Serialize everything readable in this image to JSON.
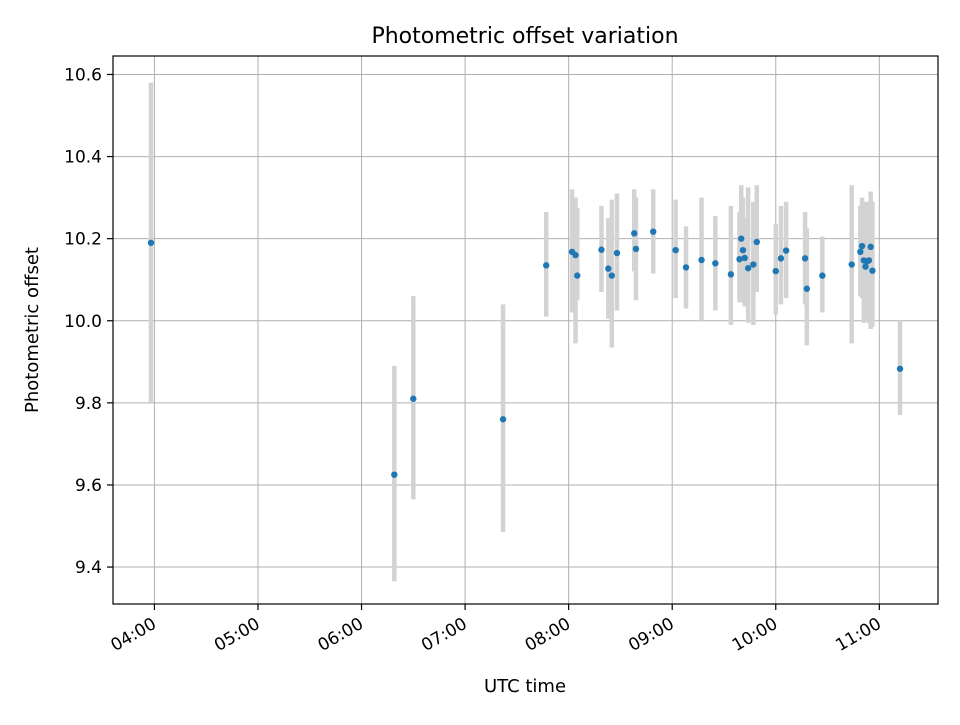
{
  "colors": {
    "point": "#1f77b4",
    "errorbar": "#d3d3d3",
    "grid": "#b0b0b0",
    "frame": "#000000",
    "background": "#ffffff"
  },
  "chart_data": {
    "type": "scatter",
    "title": "Photometric offset variation",
    "xlabel": "UTC time",
    "ylabel": "Photometric offset",
    "x_format": "HH:MM",
    "xlim": [
      "03:36",
      "11:34"
    ],
    "ylim": [
      9.31,
      10.645
    ],
    "x_ticks": [
      "04:00",
      "05:00",
      "06:00",
      "07:00",
      "08:00",
      "09:00",
      "10:00",
      "11:00"
    ],
    "y_ticks": [
      "9.4",
      "9.6",
      "9.8",
      "10.0",
      "10.2",
      "10.4",
      "10.6"
    ],
    "grid": true,
    "legend": "none",
    "series": [
      {
        "x": [
          "03:58",
          "06:19",
          "06:30",
          "07:22",
          "07:47",
          "08:02",
          "08:04",
          "08:05",
          "08:19",
          "08:23",
          "08:25",
          "08:28",
          "08:38",
          "08:39",
          "08:49",
          "09:02",
          "09:08",
          "09:17",
          "09:25",
          "09:34",
          "09:39",
          "09:40",
          "09:41",
          "09:42",
          "09:44",
          "09:47",
          "09:49",
          "10:00",
          "10:03",
          "10:06",
          "10:17",
          "10:18",
          "10:27",
          "10:44",
          "10:49",
          "10:50",
          "10:51",
          "10:52",
          "10:53",
          "10:54",
          "10:55",
          "10:56",
          "11:12"
        ],
        "y": [
          10.19,
          9.625,
          9.81,
          9.76,
          10.135,
          10.168,
          10.16,
          10.11,
          10.173,
          10.127,
          10.11,
          10.165,
          10.213,
          10.175,
          10.217,
          10.172,
          10.13,
          10.148,
          10.14,
          10.113,
          10.15,
          10.2,
          10.172,
          10.153,
          10.128,
          10.137,
          10.192,
          10.121,
          10.152,
          10.171,
          10.152,
          10.078,
          10.11,
          10.137,
          10.168,
          10.182,
          10.147,
          10.132,
          10.145,
          10.147,
          10.18,
          10.122,
          9.883
        ],
        "err_low": [
          9.8,
          9.365,
          9.565,
          9.485,
          10.01,
          10.02,
          9.945,
          10.05,
          10.07,
          10.005,
          9.935,
          10.025,
          10.12,
          10.05,
          10.115,
          10.055,
          10.03,
          10.0,
          10.025,
          9.99,
          10.045,
          10.075,
          10.045,
          10.035,
          9.995,
          9.99,
          10.07,
          10.015,
          10.04,
          10.055,
          10.04,
          9.94,
          10.02,
          9.945,
          10.06,
          10.055,
          9.995,
          10.0,
          10.0,
          9.995,
          9.98,
          9.985,
          9.77
        ],
        "err_high": [
          10.58,
          9.89,
          10.06,
          10.04,
          10.265,
          10.32,
          10.3,
          10.275,
          10.28,
          10.25,
          10.295,
          10.31,
          10.32,
          10.3,
          10.32,
          10.295,
          10.23,
          10.3,
          10.255,
          10.28,
          10.265,
          10.33,
          10.3,
          10.25,
          10.325,
          10.29,
          10.33,
          10.235,
          10.28,
          10.29,
          10.265,
          10.225,
          10.205,
          10.33,
          10.28,
          10.3,
          10.29,
          10.285,
          10.29,
          10.275,
          10.315,
          10.29,
          10.0
        ]
      }
    ]
  }
}
